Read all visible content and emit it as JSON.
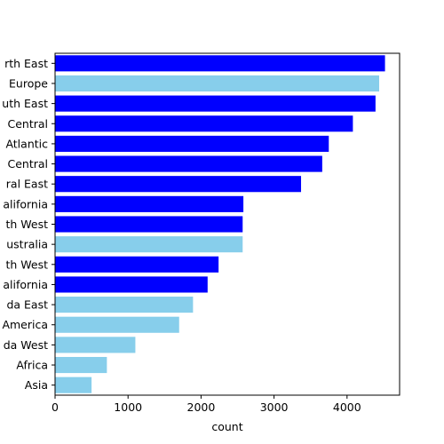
{
  "chart_data": {
    "type": "bar",
    "orientation": "horizontal",
    "categories": [
      "rth East",
      "Europe",
      "uth East",
      "Central",
      "Atlantic",
      "Central",
      "ral East",
      "alifornia",
      "th West",
      "ustralia",
      "th West",
      "alifornia",
      "da East",
      "America",
      "da West",
      "Africa",
      "Asia"
    ],
    "values": [
      4520,
      4440,
      4390,
      4080,
      3750,
      3660,
      3370,
      2580,
      2570,
      2570,
      2240,
      2090,
      1890,
      1700,
      1100,
      710,
      500
    ],
    "bar_colors": [
      "#0000ff",
      "#87ceeb",
      "#0000ff",
      "#0000ff",
      "#0000ff",
      "#0000ff",
      "#0000ff",
      "#0000ff",
      "#0000ff",
      "#87ceeb",
      "#0000ff",
      "#0000ff",
      "#87ceeb",
      "#87ceeb",
      "#87ceeb",
      "#87ceeb",
      "#87ceeb"
    ],
    "xlabel": "count",
    "ylabel": "",
    "xlim": [
      0,
      4720
    ],
    "xticks": [
      0,
      1000,
      2000,
      3000,
      4000
    ],
    "grid": false,
    "legend": "none"
  }
}
